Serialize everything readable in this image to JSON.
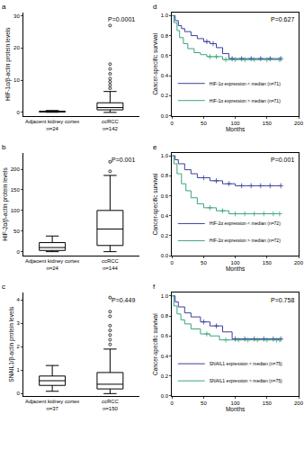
{
  "chart_data": [
    {
      "label": "a",
      "type": "box",
      "color": "#000000",
      "ylabel": "HIF-1α/β-actin protein levels",
      "categories": [
        "Adjacent kidney cortex",
        "ccRCC"
      ],
      "n": [
        "n=24",
        "n=142"
      ],
      "q1": [
        0.15,
        0.8
      ],
      "median": [
        0.25,
        1.5
      ],
      "q3": [
        0.35,
        3.0
      ],
      "lower": [
        0.05,
        0.0
      ],
      "upper": [
        0.6,
        6.5
      ],
      "outliers": [
        [],
        [
          7.5,
          8.5,
          9.5,
          10.5,
          12.0,
          13.5,
          15.0,
          27.0
        ]
      ],
      "ylim": [
        -1,
        31
      ],
      "yticks": [
        0,
        10,
        20,
        30
      ],
      "annotation": "P=0.0001"
    },
    {
      "label": "b",
      "type": "box",
      "color": "#000000",
      "ylabel": "HIF-2α/β-actin protein levels",
      "categories": [
        "Adjacent kidney cortex",
        "ccRCC"
      ],
      "n": [
        "n=24",
        "n=144"
      ],
      "q1": [
        3,
        15
      ],
      "median": [
        10,
        55
      ],
      "q3": [
        22,
        100
      ],
      "lower": [
        0,
        0
      ],
      "upper": [
        38,
        185
      ],
      "outliers": [
        [],
        [
          195,
          218
        ]
      ],
      "ylim": [
        -10,
        240
      ],
      "yticks": [
        0,
        50,
        100,
        150,
        200
      ],
      "annotation": "P=0.001"
    },
    {
      "label": "c",
      "type": "box",
      "color": "#000000",
      "ylabel": "SNAIL1/β-actin protein levels",
      "categories": [
        "Adjacent kidney cortex",
        "ccRCC"
      ],
      "n": [
        "n=37",
        "n=150"
      ],
      "q1": [
        0.35,
        0.2
      ],
      "median": [
        0.55,
        0.4
      ],
      "q3": [
        0.75,
        0.9
      ],
      "lower": [
        0.1,
        0.0
      ],
      "upper": [
        1.2,
        1.9
      ],
      "outliers": [
        [],
        [
          2.1,
          2.3,
          2.5,
          2.7,
          2.9,
          3.3,
          3.5,
          4.1
        ]
      ],
      "ylim": [
        -0.1,
        4.3
      ],
      "yticks": [
        0,
        1,
        2,
        3,
        4
      ],
      "annotation": "P=0.449"
    },
    {
      "label": "d",
      "type": "line",
      "line_style": "step",
      "marker": "cross",
      "legend": "lower left",
      "xlabel": "Months",
      "ylabel": "Cancer-specific survival",
      "xlim": [
        0,
        200
      ],
      "xticks": [
        0,
        50,
        100,
        150,
        200
      ],
      "ylim": [
        0,
        1.03
      ],
      "yticks": [
        {
          "value": 0,
          "label": "0.0"
        },
        0.2,
        0.4,
        0.6,
        0.8,
        {
          "value": 1,
          "label": "1.0"
        }
      ],
      "annotation": "P=0.627",
      "series": [
        {
          "name": "HIF-1α expression < median (n=71)",
          "color": "#3a3f9f",
          "x": [
            0,
            5,
            10,
            15,
            20,
            30,
            40,
            50,
            60,
            70,
            80,
            90,
            172
          ],
          "values": [
            1,
            0.95,
            0.9,
            0.87,
            0.84,
            0.8,
            0.77,
            0.74,
            0.72,
            0.68,
            0.62,
            0.57,
            0.57
          ],
          "censored": [
            55,
            65,
            95,
            110,
            125,
            140,
            155,
            172
          ]
        },
        {
          "name": "HIF-1α expression > median (n=71)",
          "color": "#3aa57a",
          "x": [
            0,
            3,
            8,
            12,
            18,
            25,
            35,
            45,
            55,
            80,
            170
          ],
          "values": [
            1,
            0.93,
            0.85,
            0.78,
            0.72,
            0.67,
            0.63,
            0.61,
            0.59,
            0.56,
            0.56
          ],
          "censored": [
            60,
            70,
            85,
            100,
            115,
            130,
            150,
            170
          ]
        }
      ]
    },
    {
      "label": "e",
      "type": "line",
      "line_style": "step",
      "marker": "cross",
      "legend": "lower left",
      "xlabel": "Months",
      "ylabel": "Cancer-specific survival",
      "xlim": [
        0,
        200
      ],
      "xticks": [
        0,
        50,
        100,
        150,
        200
      ],
      "ylim": [
        0,
        1.03
      ],
      "yticks": [
        {
          "value": 0,
          "label": "0.0"
        },
        0.2,
        0.4,
        0.6,
        0.8,
        {
          "value": 1,
          "label": "1.0"
        }
      ],
      "annotation": "P=0.001",
      "series": [
        {
          "name": "HIF-2α expression < median (n=72)",
          "color": "#3a3f9f",
          "x": [
            0,
            5,
            10,
            20,
            30,
            40,
            60,
            80,
            100,
            172
          ],
          "values": [
            1,
            0.96,
            0.92,
            0.86,
            0.82,
            0.78,
            0.75,
            0.72,
            0.7,
            0.7
          ],
          "censored": [
            50,
            70,
            90,
            110,
            125,
            140,
            155,
            172
          ]
        },
        {
          "name": "HIF-2α expression > median (n=72)",
          "color": "#3aa57a",
          "x": [
            0,
            3,
            8,
            15,
            22,
            30,
            40,
            50,
            70,
            90,
            170
          ],
          "values": [
            1,
            0.92,
            0.82,
            0.72,
            0.65,
            0.58,
            0.52,
            0.48,
            0.45,
            0.42,
            0.42
          ],
          "censored": [
            60,
            80,
            100,
            115,
            130,
            145,
            160,
            170
          ]
        }
      ]
    },
    {
      "label": "f",
      "type": "line",
      "line_style": "step",
      "marker": "cross",
      "legend": "lower left",
      "xlabel": "Months",
      "ylabel": "Cancer-specific survival",
      "xlim": [
        0,
        200
      ],
      "xticks": [
        0,
        50,
        100,
        150,
        200
      ],
      "ylim": [
        0,
        1.03
      ],
      "yticks": [
        {
          "value": 0,
          "label": "0.0"
        },
        0.2,
        0.4,
        0.6,
        0.8,
        {
          "value": 1,
          "label": "1.0"
        }
      ],
      "annotation": "P=0.758",
      "series": [
        {
          "name": "SNAIL1 expression < median (n=75)",
          "color": "#3a3f9f",
          "x": [
            0,
            5,
            10,
            20,
            30,
            45,
            60,
            80,
            95,
            172
          ],
          "values": [
            1,
            0.94,
            0.89,
            0.83,
            0.79,
            0.74,
            0.7,
            0.64,
            0.57,
            0.57
          ],
          "censored": [
            50,
            70,
            100,
            115,
            130,
            145,
            160,
            172
          ]
        },
        {
          "name": "SNAIL1 expression > median (n=75)",
          "color": "#3aa57a",
          "x": [
            0,
            3,
            8,
            14,
            20,
            30,
            45,
            60,
            75,
            170
          ],
          "values": [
            1,
            0.9,
            0.82,
            0.76,
            0.72,
            0.67,
            0.62,
            0.6,
            0.56,
            0.56
          ],
          "censored": [
            55,
            85,
            105,
            120,
            135,
            150,
            165,
            170
          ]
        }
      ]
    }
  ]
}
